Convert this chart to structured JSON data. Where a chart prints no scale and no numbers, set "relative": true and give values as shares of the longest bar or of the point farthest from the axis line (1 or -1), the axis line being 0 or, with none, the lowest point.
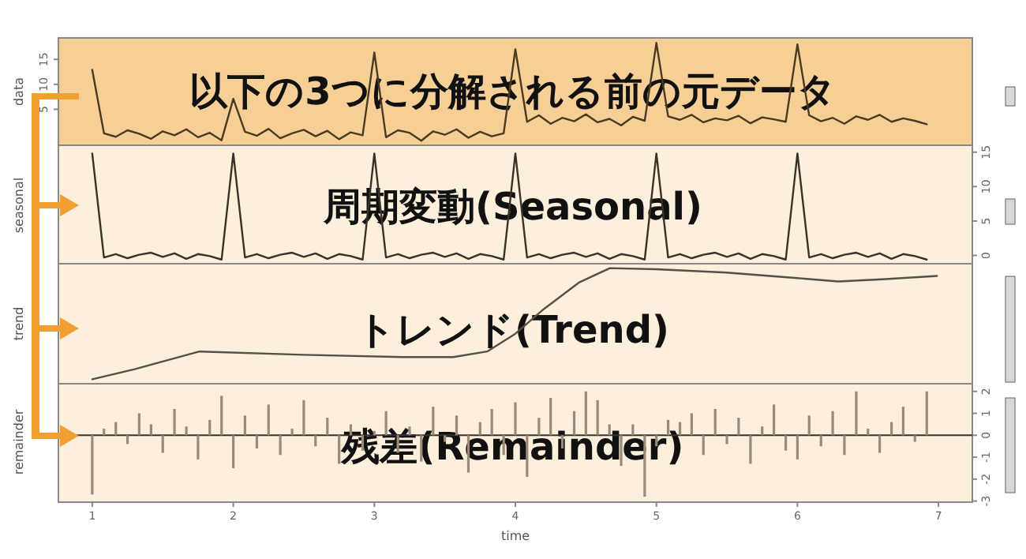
{
  "chart_data": [
    {
      "type": "line",
      "title": "以下の3つに分解される前の元データ",
      "ylabel": "data",
      "xlim": [
        0.76,
        7.24
      ],
      "ylim": [
        -2.2,
        19.3
      ],
      "yticks": [
        5,
        10,
        15
      ],
      "tick_labels": "y",
      "grid": false,
      "color": "#4a3a20",
      "x": [
        1,
        1.083,
        1.167,
        1.25,
        1.333,
        1.417,
        1.5,
        1.583,
        1.667,
        1.75,
        1.833,
        1.917,
        2,
        2.083,
        2.167,
        2.25,
        2.333,
        2.417,
        2.5,
        2.583,
        2.667,
        2.75,
        2.833,
        2.917,
        3,
        3.083,
        3.167,
        3.25,
        3.333,
        3.417,
        3.5,
        3.583,
        3.667,
        3.75,
        3.833,
        3.917,
        4,
        4.083,
        4.167,
        4.25,
        4.333,
        4.417,
        4.5,
        4.583,
        4.667,
        4.75,
        4.833,
        4.917,
        5,
        5.083,
        5.167,
        5.25,
        5.333,
        5.417,
        5.5,
        5.583,
        5.667,
        5.75,
        5.833,
        5.917,
        6,
        6.083,
        6.167,
        6.25,
        6.333,
        6.417,
        6.5,
        6.583,
        6.667,
        6.75,
        6.833,
        6.917
      ],
      "values": [
        12.9,
        0.2,
        -0.5,
        0.8,
        0.1,
        -0.9,
        0.6,
        -0.2,
        1.0,
        -0.6,
        0.3,
        -1.2,
        7.1,
        0.5,
        -0.3,
        1.1,
        -0.8,
        0.2,
        0.9,
        -0.4,
        0.7,
        -1.0,
        0.4,
        -0.2,
        16.4,
        -0.6,
        0.8,
        0.3,
        -1.3,
        0.6,
        -0.1,
        1.0,
        -0.7,
        0.5,
        -0.4,
        0.2,
        17.0,
        2.5,
        3.8,
        2.1,
        3.3,
        2.6,
        4.0,
        2.4,
        3.1,
        1.8,
        3.5,
        2.7,
        18.3,
        3.6,
        2.9,
        3.9,
        2.4,
        3.2,
        2.8,
        3.7,
        2.2,
        3.4,
        3.0,
        2.5,
        18.0,
        3.8,
        2.6,
        3.3,
        2.1,
        3.6,
        2.9,
        3.9,
        2.5,
        3.2,
        2.7,
        2.0
      ]
    },
    {
      "type": "line",
      "title": "周期変動(Seasonal)",
      "ylabel": "seasonal",
      "xlim": [
        0.76,
        7.24
      ],
      "ylim": [
        -1.2,
        16
      ],
      "yticks": [
        0,
        5,
        10,
        15
      ],
      "tick_labels": "y",
      "grid": false,
      "color": "#3a3226",
      "x": [
        1,
        1.083,
        1.167,
        1.25,
        1.333,
        1.417,
        1.5,
        1.583,
        1.667,
        1.75,
        1.833,
        1.917,
        2,
        2.083,
        2.167,
        2.25,
        2.333,
        2.417,
        2.5,
        2.583,
        2.667,
        2.75,
        2.833,
        2.917,
        3,
        3.083,
        3.167,
        3.25,
        3.333,
        3.417,
        3.5,
        3.583,
        3.667,
        3.75,
        3.833,
        3.917,
        4,
        4.083,
        4.167,
        4.25,
        4.333,
        4.417,
        4.5,
        4.583,
        4.667,
        4.75,
        4.833,
        4.917,
        5,
        5.083,
        5.167,
        5.25,
        5.333,
        5.417,
        5.5,
        5.583,
        5.667,
        5.75,
        5.833,
        5.917,
        6,
        6.083,
        6.167,
        6.25,
        6.333,
        6.417,
        6.5,
        6.583,
        6.667,
        6.75,
        6.833,
        6.917
      ],
      "values": [
        14.8,
        -0.3,
        0.2,
        -0.4,
        0.1,
        0.4,
        -0.2,
        0.3,
        -0.5,
        0.2,
        -0.1,
        -0.6,
        14.8,
        -0.3,
        0.2,
        -0.4,
        0.1,
        0.4,
        -0.2,
        0.3,
        -0.5,
        0.2,
        -0.1,
        -0.6,
        14.8,
        -0.3,
        0.2,
        -0.4,
        0.1,
        0.4,
        -0.2,
        0.3,
        -0.5,
        0.2,
        -0.1,
        -0.6,
        14.8,
        -0.3,
        0.2,
        -0.4,
        0.1,
        0.4,
        -0.2,
        0.3,
        -0.5,
        0.2,
        -0.1,
        -0.6,
        14.8,
        -0.3,
        0.2,
        -0.4,
        0.1,
        0.4,
        -0.2,
        0.3,
        -0.5,
        0.2,
        -0.1,
        -0.6,
        14.8,
        -0.3,
        0.2,
        -0.4,
        0.1,
        0.4,
        -0.2,
        0.3,
        -0.5,
        0.2,
        -0.1,
        -0.6
      ]
    },
    {
      "type": "line",
      "title": "トレンド(Trend)",
      "ylabel": "trend",
      "xlim": [
        0.76,
        7.24
      ],
      "relative": true,
      "tick_labels": false,
      "grid": false,
      "color": "#555048",
      "x": [
        1,
        1.3,
        1.76,
        2.5,
        3.2,
        3.56,
        3.8,
        4.0,
        4.2,
        4.45,
        4.67,
        5.0,
        5.5,
        6.0,
        6.29,
        6.6,
        6.99
      ],
      "values": [
        0,
        0.09,
        0.25,
        0.22,
        0.2,
        0.2,
        0.25,
        0.41,
        0.63,
        0.87,
        1.0,
        0.99,
        0.96,
        0.91,
        0.88,
        0.9,
        0.93
      ]
    },
    {
      "type": "bar",
      "title": "残差(Remainder)",
      "ylabel": "remainder",
      "xlabel": "time",
      "xlim": [
        0.76,
        7.24
      ],
      "xticks": [
        1,
        2,
        3,
        4,
        5,
        6,
        7
      ],
      "ylim": [
        -3.05,
        2.35
      ],
      "yticks": [
        -3,
        -2,
        -1,
        0,
        1,
        2
      ],
      "grid": false,
      "color": "#9a8a76",
      "ref_lines": [
        {
          "axis": "y",
          "value": 0,
          "color": "#333333"
        }
      ],
      "x": [
        1,
        1.083,
        1.167,
        1.25,
        1.333,
        1.417,
        1.5,
        1.583,
        1.667,
        1.75,
        1.833,
        1.917,
        2,
        2.083,
        2.167,
        2.25,
        2.333,
        2.417,
        2.5,
        2.583,
        2.667,
        2.75,
        2.833,
        2.917,
        3,
        3.083,
        3.167,
        3.25,
        3.333,
        3.417,
        3.5,
        3.583,
        3.667,
        3.75,
        3.833,
        3.917,
        4,
        4.083,
        4.167,
        4.25,
        4.333,
        4.417,
        4.5,
        4.583,
        4.667,
        4.75,
        4.833,
        4.917,
        5,
        5.083,
        5.167,
        5.25,
        5.333,
        5.417,
        5.5,
        5.583,
        5.667,
        5.75,
        5.833,
        5.917,
        6,
        6.083,
        6.167,
        6.25,
        6.333,
        6.417,
        6.5,
        6.583,
        6.667,
        6.75,
        6.833,
        6.917
      ],
      "values": [
        -2.7,
        0.3,
        0.6,
        -0.4,
        1.0,
        0.5,
        -0.8,
        1.2,
        0.4,
        -1.1,
        0.7,
        1.8,
        -1.5,
        0.9,
        -0.6,
        1.4,
        -0.9,
        0.3,
        1.6,
        -0.5,
        0.8,
        -1.3,
        0.5,
        -0.7,
        0.2,
        1.1,
        -0.8,
        0.4,
        -1.2,
        1.3,
        -0.3,
        0.9,
        -1.7,
        0.6,
        1.2,
        -0.9,
        1.5,
        -1.9,
        0.8,
        1.7,
        -0.6,
        1.1,
        2.0,
        1.6,
        0.5,
        -1.4,
        0.5,
        -2.8,
        -0.5,
        0.7,
        0.6,
        1.0,
        -0.9,
        1.2,
        -0.4,
        0.8,
        -1.3,
        0.4,
        1.4,
        -0.7,
        -1.1,
        0.9,
        -0.5,
        1.1,
        -0.9,
        2.0,
        0.3,
        -0.8,
        0.6,
        1.3,
        -0.3,
        2.0
      ]
    }
  ]
}
